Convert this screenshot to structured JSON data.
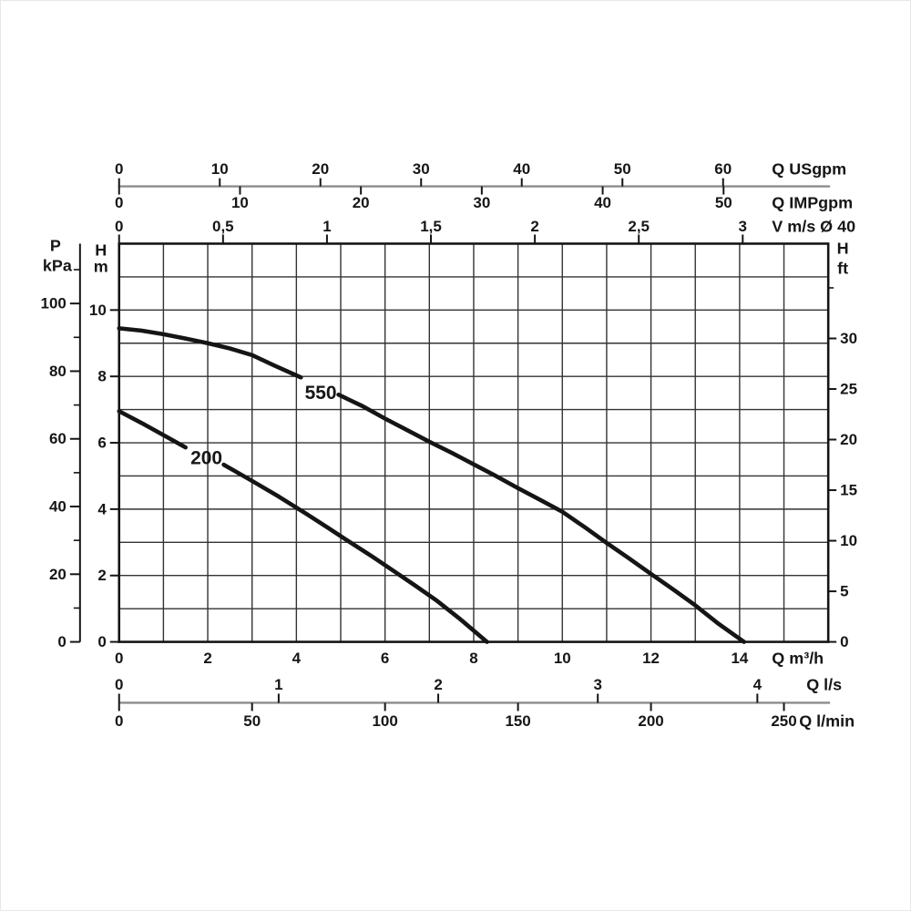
{
  "page": {
    "background": "#ffffff"
  },
  "chart_data": {
    "type": "line",
    "title": "",
    "grid": true,
    "legend_position": "none",
    "x_primary": {
      "unit": "Q m³/h",
      "range": [
        0,
        16
      ],
      "ticks": [
        0,
        2,
        4,
        6,
        8,
        10,
        12,
        14
      ]
    },
    "y_primary": {
      "header_letter": "H",
      "header_unit": "m",
      "range": [
        0,
        12
      ],
      "ticks": [
        0,
        2,
        4,
        6,
        8,
        10
      ]
    },
    "aux_axes": {
      "usgpm": {
        "unit": "Q USgpm",
        "factor_to_m3h": 0.22712,
        "ticks": [
          0,
          10,
          20,
          30,
          40,
          50,
          60
        ],
        "tick_labels": [
          "0",
          "10",
          "20",
          "30",
          "40",
          "50",
          "60"
        ]
      },
      "impgpm": {
        "unit": "Q IMPgpm",
        "factor_to_m3h": 0.27276,
        "ticks": [
          0,
          10,
          20,
          30,
          40,
          50
        ],
        "tick_labels": [
          "0",
          "10",
          "20",
          "30",
          "40",
          "50"
        ]
      },
      "v_ms": {
        "unit": "V m/s Ø 40",
        "factor_to_m3h": 4.69,
        "ticks": [
          0,
          0.5,
          1,
          1.5,
          2,
          2.5,
          3
        ],
        "tick_labels": [
          "0",
          "0,5",
          "1",
          "1,5",
          "2",
          "2,5",
          "3"
        ]
      },
      "l_s": {
        "unit": "Q l/s",
        "factor_to_m3h": 3.6,
        "ticks": [
          0,
          1,
          2,
          3,
          4
        ],
        "tick_labels": [
          "0",
          "1",
          "2",
          "3",
          "4"
        ]
      },
      "l_min": {
        "unit": "Q l/min",
        "factor_to_m3h": 0.06,
        "ticks": [
          0,
          50,
          100,
          150,
          200,
          250
        ],
        "tick_labels": [
          "0",
          "50",
          "100",
          "150",
          "200",
          "250"
        ]
      },
      "kpa": {
        "header_letter": "P",
        "header_unit": "kPa",
        "factor_to_m": 0.10197,
        "ticks": [
          0,
          20,
          40,
          60,
          80,
          100
        ],
        "tick_labels": [
          "0",
          "20",
          "40",
          "60",
          "80",
          "100"
        ],
        "minor_ticks": [
          10,
          30,
          50,
          70,
          90,
          110
        ]
      },
      "ft": {
        "header_letter": "H",
        "header_unit": "ft",
        "factor_to_m": 0.3048,
        "ticks": [
          0,
          5,
          10,
          15,
          20,
          25,
          30
        ],
        "tick_labels": [
          "0",
          "5",
          "10",
          "15",
          "20",
          "25",
          "30"
        ],
        "minor_ticks": [
          35
        ]
      }
    },
    "series": [
      {
        "name": "550",
        "label": "550",
        "label_at": [
          4.55,
          7.5
        ],
        "segments": [
          [
            [
              0,
              9.45
            ],
            [
              0.5,
              9.38
            ],
            [
              1,
              9.27
            ],
            [
              1.5,
              9.14
            ],
            [
              2,
              9.0
            ],
            [
              2.5,
              8.84
            ],
            [
              3,
              8.64
            ],
            [
              3.5,
              8.33
            ],
            [
              4.1,
              7.97
            ]
          ],
          [
            [
              4.95,
              7.45
            ],
            [
              5.5,
              7.1
            ],
            [
              6,
              6.73
            ],
            [
              6.5,
              6.38
            ],
            [
              7,
              6.03
            ],
            [
              7.5,
              5.7
            ],
            [
              8,
              5.35
            ],
            [
              8.5,
              5.0
            ],
            [
              9,
              4.63
            ],
            [
              9.5,
              4.28
            ],
            [
              10,
              3.92
            ],
            [
              10.5,
              3.46
            ],
            [
              11,
              2.98
            ],
            [
              11.5,
              2.52
            ],
            [
              12,
              2.05
            ],
            [
              12.5,
              1.58
            ],
            [
              13,
              1.1
            ],
            [
              13.5,
              0.57
            ],
            [
              14.1,
              0
            ]
          ]
        ]
      },
      {
        "name": "200",
        "label": "200",
        "label_at": [
          1.97,
          5.53
        ],
        "segments": [
          [
            [
              0,
              6.95
            ],
            [
              0.5,
              6.6
            ],
            [
              1,
              6.23
            ],
            [
              1.5,
              5.86
            ]
          ],
          [
            [
              2.36,
              5.34
            ],
            [
              3,
              4.85
            ],
            [
              3.6,
              4.38
            ],
            [
              4.2,
              3.88
            ],
            [
              4.7,
              3.45
            ],
            [
              5.13,
              3.07
            ],
            [
              5.7,
              2.58
            ],
            [
              6.19,
              2.14
            ],
            [
              6.7,
              1.68
            ],
            [
              7.18,
              1.23
            ],
            [
              7.7,
              0.68
            ],
            [
              8.3,
              0
            ]
          ]
        ]
      }
    ],
    "colors": {
      "curve": "#151515",
      "grid": "#333333",
      "axis": "#151515",
      "aux_line": "#8c8c8c",
      "text": "#161616"
    }
  }
}
